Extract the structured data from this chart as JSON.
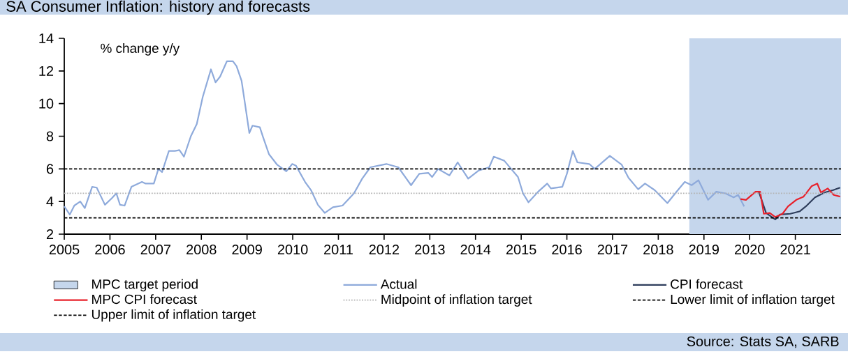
{
  "chart_data": {
    "type": "line",
    "title": "SA Consumer Inflation: history and forecasts",
    "ylabel": "% change y/y",
    "annotations": [
      "Source: Stats SA, SARB"
    ],
    "xlim": [
      2005,
      2022
    ],
    "xticks": [
      2005,
      2006,
      2007,
      2008,
      2009,
      2010,
      2011,
      2012,
      2013,
      2014,
      2015,
      2016,
      2017,
      2018,
      2019,
      2020,
      2021
    ],
    "ylim": [
      2,
      14
    ],
    "yticks": [
      2,
      4,
      6,
      8,
      10,
      12,
      14
    ],
    "legend": "bottom",
    "bands": [
      {
        "axis": "x",
        "from": 2018.68,
        "to": 2022,
        "label": "MPC target period",
        "color": "#c5d6ec"
      }
    ],
    "series": [
      {
        "name": "Actual",
        "color": "#8eaadb",
        "x": [
          2005.0,
          2005.12,
          2005.22,
          2005.35,
          2005.45,
          2005.61,
          2005.71,
          2005.89,
          2006.04,
          2006.14,
          2006.22,
          2006.32,
          2006.47,
          2006.7,
          2006.78,
          2006.96,
          2007.06,
          2007.14,
          2007.29,
          2007.42,
          2007.52,
          2007.62,
          2007.77,
          2007.9,
          2008.03,
          2008.21,
          2008.31,
          2008.41,
          2008.56,
          2008.69,
          2008.77,
          2008.88,
          2008.95,
          2009.05,
          2009.12,
          2009.28,
          2009.35,
          2009.48,
          2009.66,
          2009.86,
          2009.99,
          2010.07,
          2010.27,
          2010.4,
          2010.55,
          2010.7,
          2010.88,
          2011.09,
          2011.34,
          2011.52,
          2011.7,
          2012.05,
          2012.31,
          2012.59,
          2012.77,
          2012.97,
          2013.05,
          2013.18,
          2013.43,
          2013.61,
          2013.84,
          2014.07,
          2014.3,
          2014.4,
          2014.63,
          2014.78,
          2014.93,
          2015.04,
          2015.16,
          2015.37,
          2015.57,
          2015.65,
          2015.9,
          2016.0,
          2016.13,
          2016.23,
          2016.49,
          2016.61,
          2016.94,
          2017.2,
          2017.35,
          2017.56,
          2017.71,
          2017.92,
          2018.2,
          2018.37,
          2018.58,
          2018.73,
          2018.88,
          2019.09,
          2019.27,
          2019.47,
          2019.65,
          2019.75,
          2019.88
        ],
        "values": [
          3.7,
          3.2,
          3.75,
          4.0,
          3.6,
          4.9,
          4.85,
          3.8,
          4.2,
          4.5,
          3.8,
          3.75,
          4.9,
          5.2,
          5.1,
          5.1,
          6.0,
          5.8,
          7.1,
          7.1,
          7.15,
          6.75,
          8.0,
          8.75,
          10.4,
          12.1,
          11.3,
          11.65,
          12.6,
          12.6,
          12.3,
          11.4,
          10.1,
          8.2,
          8.65,
          8.55,
          7.95,
          6.9,
          6.25,
          5.85,
          6.3,
          6.2,
          5.2,
          4.7,
          3.8,
          3.3,
          3.65,
          3.75,
          4.5,
          5.4,
          6.1,
          6.3,
          6.1,
          5.0,
          5.7,
          5.75,
          5.5,
          6.0,
          5.6,
          6.4,
          5.4,
          5.9,
          6.1,
          6.75,
          6.5,
          6.0,
          5.5,
          4.5,
          3.95,
          4.6,
          5.1,
          4.8,
          4.9,
          5.7,
          7.1,
          6.4,
          6.3,
          6.0,
          6.8,
          6.25,
          5.45,
          4.75,
          5.1,
          4.7,
          3.9,
          4.5,
          5.2,
          5.0,
          5.3,
          4.1,
          4.6,
          4.5,
          4.25,
          4.4,
          3.7
        ]
      },
      {
        "name": "CPI forecast",
        "color": "#2f3e5c",
        "x": [
          2020.2,
          2020.36,
          2020.56,
          2020.66,
          2020.89,
          2021.1,
          2021.23,
          2021.43,
          2021.64,
          2021.83,
          2021.98
        ],
        "values": [
          4.6,
          3.3,
          2.9,
          3.2,
          3.25,
          3.4,
          3.7,
          4.25,
          4.55,
          4.7,
          4.85
        ]
      },
      {
        "name": "MPC CPI forecast",
        "color": "#e8202a",
        "x": [
          2019.8,
          2019.92,
          2020.13,
          2020.23,
          2020.31,
          2020.44,
          2020.56,
          2020.72,
          2020.84,
          2021.02,
          2021.18,
          2021.36,
          2021.48,
          2021.56,
          2021.71,
          2021.84,
          2021.98
        ],
        "values": [
          4.15,
          4.1,
          4.6,
          4.6,
          3.25,
          3.3,
          3.05,
          3.25,
          3.7,
          4.1,
          4.3,
          4.95,
          5.1,
          4.55,
          4.8,
          4.4,
          4.3
        ]
      }
    ],
    "ref_lines": [
      {
        "axis": "y",
        "value": 4.5,
        "label": "Midpoint of inflation target",
        "color": "#b4b4b4",
        "line_style": "dotted"
      },
      {
        "axis": "y",
        "value": 3,
        "label": "Lower limit of inflation target",
        "color": "#000000",
        "line_style": "dashed"
      },
      {
        "axis": "y",
        "value": 6,
        "label": "Upper limit of inflation target",
        "color": "#000000",
        "line_style": "dashed"
      }
    ]
  }
}
